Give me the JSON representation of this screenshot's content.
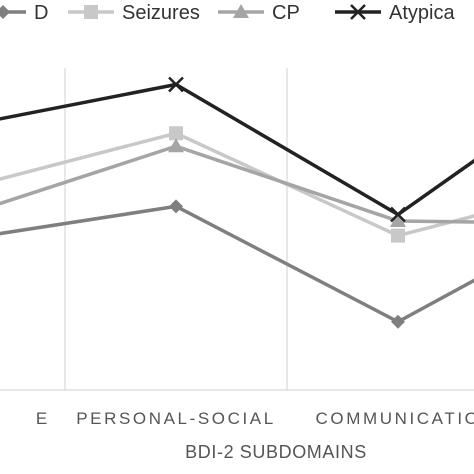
{
  "chart_data": {
    "type": "line",
    "xlabel": "BDI-2 SUBDOMAINS",
    "categories": [
      "E",
      "PERSONAL-SOCIAL",
      "COMMUNICATIO"
    ],
    "category_positions": [
      -0.1,
      0.5,
      1.5
    ],
    "series": [
      {
        "name": "D",
        "color": "#7f7f7f",
        "marker": "diamond",
        "x": [
          -0.4,
          0.5,
          1.5,
          2.04,
          2.12
        ],
        "y": [
          47,
          56.5,
          21,
          41,
          43
        ]
      },
      {
        "name": "Seizures",
        "color": "#c8c8c8",
        "marker": "square",
        "x": [
          -0.4,
          0.5,
          1.5,
          2.04,
          2.12
        ],
        "y": [
          63,
          79,
          47.5,
          57,
          56
        ]
      },
      {
        "name": "CP",
        "color": "#a5a5a5",
        "marker": "triangle",
        "x": [
          -0.4,
          0.5,
          1.5,
          2.04,
          2.12
        ],
        "y": [
          55,
          75,
          52,
          51.5,
          52
        ]
      },
      {
        "name": "Atypica",
        "color": "#222222",
        "marker": "x",
        "x": [
          -0.4,
          0.5,
          1.5,
          2.04,
          2.12
        ],
        "y": [
          82,
          94,
          54,
          80,
          88
        ]
      }
    ],
    "legend": {
      "position": "top"
    },
    "grid": {
      "vertical": true,
      "horizontal": false
    }
  }
}
